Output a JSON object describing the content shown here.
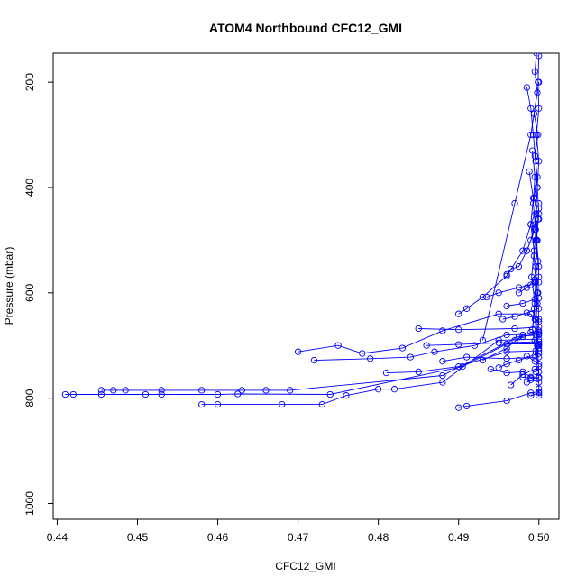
{
  "chart_data": {
    "type": "line",
    "title": "ATOM4 Northbound CFC12_GMI",
    "xlabel": "CFC12_GMI",
    "ylabel": "Pressure (mbar)",
    "xlim": [
      0.4395,
      0.5025
    ],
    "ylim": [
      1030,
      145
    ],
    "y_reversed": true,
    "x_ticks": [
      0.44,
      0.45,
      0.46,
      0.47,
      0.48,
      0.49,
      0.5
    ],
    "x_tick_labels": [
      "0.44",
      "0.45",
      "0.46",
      "0.47",
      "0.48",
      "0.49",
      "0.50"
    ],
    "y_ticks": [
      200,
      400,
      600,
      800,
      1000
    ],
    "y_tick_labels": [
      "200",
      "400",
      "600",
      "800",
      "1000"
    ],
    "grid": false,
    "color": "#0000ff",
    "marker": "open-circle",
    "series": [
      {
        "values": [
          [
            0.441,
            793
          ],
          [
            0.442,
            793
          ],
          [
            0.4455,
            793
          ],
          [
            0.451,
            793
          ],
          [
            0.453,
            793
          ],
          [
            0.46,
            793
          ],
          [
            0.4625,
            792
          ],
          [
            0.474,
            793
          ],
          [
            0.4905,
            740
          ],
          [
            0.496,
            697
          ],
          [
            0.5,
            697
          ]
        ]
      },
      {
        "values": [
          [
            0.4455,
            785
          ],
          [
            0.447,
            785
          ],
          [
            0.4485,
            785
          ],
          [
            0.453,
            785
          ],
          [
            0.458,
            785
          ],
          [
            0.463,
            785
          ],
          [
            0.466,
            785
          ],
          [
            0.469,
            785
          ],
          [
            0.488,
            757
          ],
          [
            0.4975,
            683
          ],
          [
            0.5,
            680
          ]
        ]
      },
      {
        "values": [
          [
            0.458,
            812
          ],
          [
            0.46,
            812
          ],
          [
            0.468,
            812
          ],
          [
            0.473,
            812
          ],
          [
            0.476,
            795
          ],
          [
            0.48,
            783
          ],
          [
            0.482,
            783
          ],
          [
            0.488,
            770
          ],
          [
            0.495,
            690
          ],
          [
            0.5,
            688
          ]
        ]
      },
      {
        "values": [
          [
            0.47,
            712
          ],
          [
            0.475,
            700
          ],
          [
            0.478,
            715
          ],
          [
            0.483,
            705
          ],
          [
            0.488,
            672
          ],
          [
            0.495,
            640
          ],
          [
            0.499,
            640
          ]
        ]
      },
      {
        "values": [
          [
            0.472,
            728
          ],
          [
            0.479,
            725
          ],
          [
            0.484,
            722
          ],
          [
            0.487,
            712
          ],
          [
            0.492,
            700
          ],
          [
            0.496,
            680
          ],
          [
            0.5,
            678
          ]
        ]
      },
      {
        "values": [
          [
            0.481,
            752
          ],
          [
            0.485,
            750
          ],
          [
            0.49,
            740
          ],
          [
            0.496,
            712
          ],
          [
            0.5,
            710
          ]
        ]
      },
      {
        "values": [
          [
            0.485,
            668
          ],
          [
            0.49,
            670
          ],
          [
            0.497,
            668
          ],
          [
            0.5,
            665
          ]
        ]
      },
      {
        "values": [
          [
            0.486,
            700
          ],
          [
            0.49,
            698
          ],
          [
            0.495,
            695
          ],
          [
            0.5,
            693
          ]
        ]
      },
      {
        "values": [
          [
            0.488,
            730
          ],
          [
            0.491,
            722
          ],
          [
            0.496,
            725
          ],
          [
            0.5,
            722
          ]
        ]
      },
      {
        "values": [
          [
            0.49,
            640
          ],
          [
            0.491,
            630
          ],
          [
            0.493,
            608
          ],
          [
            0.496,
            568
          ],
          [
            0.498,
            520
          ],
          [
            0.499,
            470
          ],
          [
            0.5,
            430
          ]
        ]
      },
      {
        "values": [
          [
            0.493,
            728
          ],
          [
            0.496,
            705
          ],
          [
            0.498,
            680
          ],
          [
            0.5,
            675
          ]
        ]
      },
      {
        "values": [
          [
            0.494,
            745
          ],
          [
            0.496,
            752
          ],
          [
            0.498,
            750
          ],
          [
            0.499,
            760
          ],
          [
            0.5,
            760
          ]
        ]
      },
      {
        "values": [
          [
            0.495,
            742
          ],
          [
            0.496,
            735
          ],
          [
            0.4975,
            728
          ],
          [
            0.5,
            715
          ]
        ]
      },
      {
        "values": [
          [
            0.49,
            818
          ],
          [
            0.491,
            815
          ],
          [
            0.496,
            805
          ],
          [
            0.499,
            790
          ],
          [
            0.5,
            788
          ]
        ]
      },
      {
        "values": [
          [
            0.4965,
            775
          ],
          [
            0.498,
            755
          ],
          [
            0.4995,
            745
          ],
          [
            0.5,
            740
          ]
        ]
      },
      {
        "values": [
          [
            0.496,
            565
          ],
          [
            0.4965,
            555
          ],
          [
            0.4975,
            550
          ],
          [
            0.4985,
            520
          ],
          [
            0.4995,
            480
          ],
          [
            0.5,
            460
          ]
        ]
      },
      {
        "values": [
          [
            0.497,
            690
          ],
          [
            0.498,
            683
          ],
          [
            0.499,
            675
          ],
          [
            0.5,
            672
          ]
        ]
      },
      {
        "values": [
          [
            0.4955,
            650
          ],
          [
            0.497,
            645
          ],
          [
            0.4985,
            638
          ],
          [
            0.5,
            630
          ]
        ]
      },
      {
        "values": [
          [
            0.493,
            690
          ],
          [
            0.497,
            430
          ],
          [
            0.499,
            300
          ],
          [
            0.5,
            200
          ]
        ]
      },
      {
        "values": [
          [
            0.4935,
            608
          ],
          [
            0.495,
            600
          ],
          [
            0.4975,
            590
          ],
          [
            0.499,
            585
          ],
          [
            0.5,
            580
          ]
        ]
      },
      {
        "values": [
          [
            0.496,
            625
          ],
          [
            0.498,
            620
          ],
          [
            0.4995,
            612
          ],
          [
            0.5,
            610
          ]
        ]
      },
      {
        "values": [
          [
            0.498,
            760
          ],
          [
            0.499,
            762
          ],
          [
            0.5,
            762
          ]
        ]
      },
      {
        "values": [
          [
            0.4985,
            720
          ],
          [
            0.4995,
            730
          ],
          [
            0.5,
            735
          ]
        ]
      },
      {
        "values": [
          [
            0.499,
            795
          ],
          [
            0.5,
            790
          ],
          [
            0.5,
            782
          ]
        ]
      },
      {
        "values": [
          [
            0.4985,
            770
          ],
          [
            0.499,
            765
          ],
          [
            0.5,
            770
          ]
        ]
      },
      {
        "values": [
          [
            0.499,
            640
          ],
          [
            0.4995,
            650
          ],
          [
            0.5,
            655
          ]
        ]
      },
      {
        "values": [
          [
            0.4995,
            690
          ],
          [
            0.5,
            700
          ],
          [
            0.5,
            705
          ]
        ]
      },
      {
        "values": [
          [
            0.4985,
            520
          ],
          [
            0.499,
            500
          ],
          [
            0.4995,
            470
          ],
          [
            0.5,
            440
          ]
        ]
      },
      {
        "values": [
          [
            0.4975,
            600
          ],
          [
            0.4985,
            590
          ],
          [
            0.4995,
            575
          ],
          [
            0.5,
            570
          ]
        ]
      },
      {
        "values": [
          [
            0.4985,
            210
          ],
          [
            0.499,
            250
          ],
          [
            0.4993,
            300
          ],
          [
            0.4996,
            350
          ],
          [
            0.4998,
            400
          ],
          [
            0.4996,
            450
          ],
          [
            0.4998,
            500
          ],
          [
            0.4996,
            550
          ],
          [
            0.4998,
            600
          ],
          [
            0.4996,
            650
          ],
          [
            0.4998,
            700
          ],
          [
            0.4996,
            750
          ]
        ]
      },
      {
        "values": [
          [
            0.4997,
            145
          ],
          [
            0.4995,
            180
          ],
          [
            0.4998,
            220
          ],
          [
            0.4994,
            260
          ],
          [
            0.4999,
            300
          ],
          [
            0.4995,
            340
          ],
          [
            0.4998,
            380
          ],
          [
            0.4994,
            420
          ],
          [
            0.4999,
            460
          ],
          [
            0.4996,
            500
          ],
          [
            0.4999,
            540
          ],
          [
            0.4995,
            580
          ],
          [
            0.4998,
            620
          ],
          [
            0.4996,
            660
          ],
          [
            0.4999,
            700
          ]
        ]
      },
      {
        "values": [
          [
            0.5,
            150
          ],
          [
            0.4999,
            200
          ],
          [
            0.5,
            250
          ],
          [
            0.4997,
            300
          ],
          [
            0.5,
            350
          ],
          [
            0.4998,
            400
          ],
          [
            0.5,
            450
          ],
          [
            0.4997,
            500
          ],
          [
            0.5,
            550
          ],
          [
            0.4999,
            600
          ],
          [
            0.5,
            650
          ],
          [
            0.4998,
            700
          ],
          [
            0.5,
            750
          ],
          [
            0.5,
            795
          ]
        ]
      },
      {
        "values": [
          [
            0.4992,
            330
          ],
          [
            0.4995,
            380
          ],
          [
            0.4993,
            430
          ],
          [
            0.4996,
            480
          ],
          [
            0.4994,
            530
          ],
          [
            0.4996,
            580
          ],
          [
            0.4994,
            630
          ],
          [
            0.4997,
            680
          ],
          [
            0.4995,
            720
          ]
        ]
      },
      {
        "values": [
          [
            0.4988,
            370
          ],
          [
            0.4993,
            420
          ],
          [
            0.499,
            470
          ],
          [
            0.4994,
            520
          ],
          [
            0.4991,
            570
          ],
          [
            0.4995,
            620
          ],
          [
            0.4992,
            670
          ],
          [
            0.4996,
            710
          ]
        ]
      }
    ]
  }
}
